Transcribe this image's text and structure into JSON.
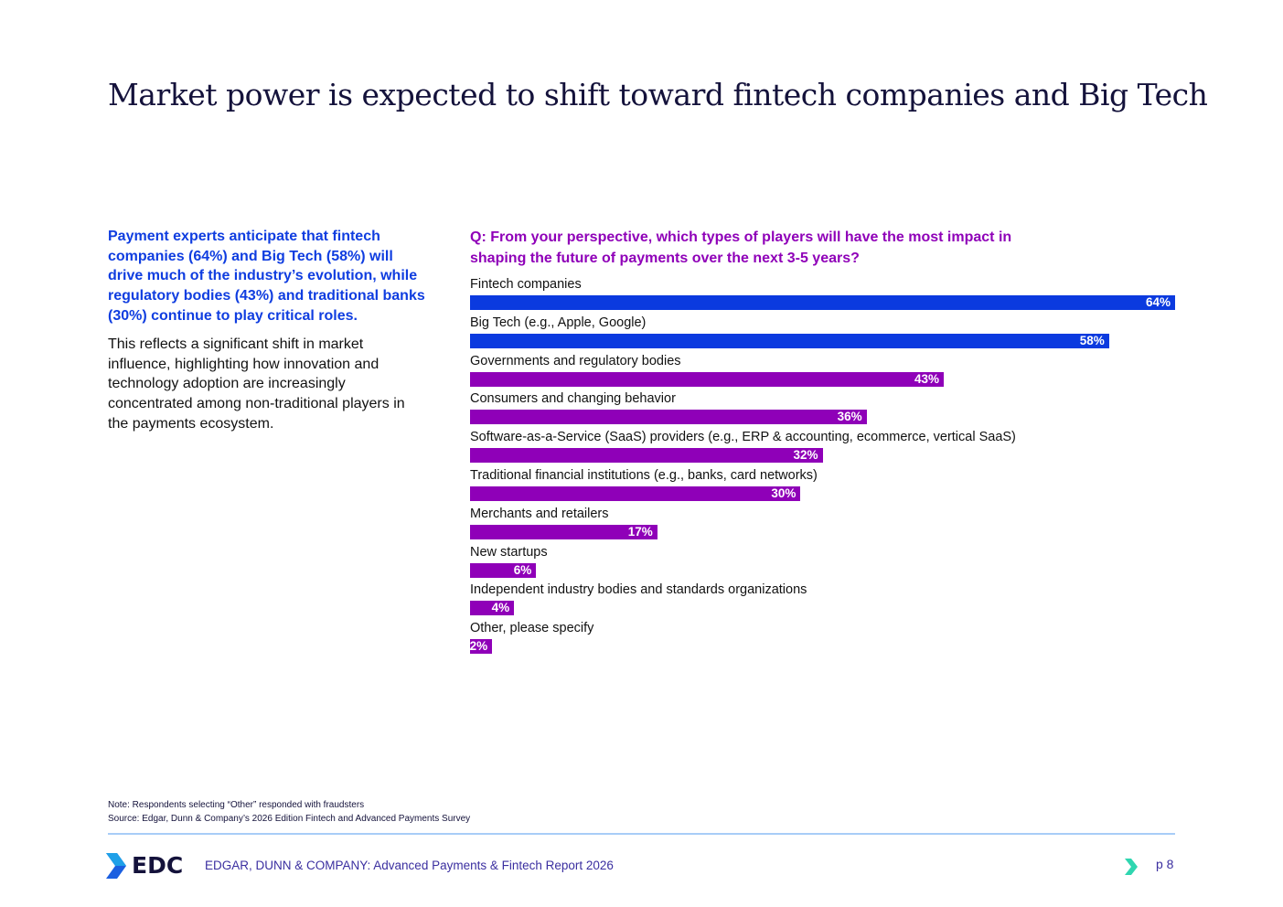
{
  "title": "Market power is expected to shift toward fintech companies and Big Tech",
  "lead": "Payment experts anticipate that fintech companies (64%) and Big Tech (58%) will drive much of the industry’s evolution, while regulatory bodies (43%) and traditional banks (30%) continue to play critical roles.",
  "body": "This reflects a significant shift in market influence, highlighting how innovation and technology adoption are increasingly concentrated among non-traditional players in the payments ecosystem.",
  "chart_data": {
    "type": "bar",
    "orientation": "horizontal",
    "title": "Q: From your perspective, which types of players will have the most impact in shaping the future of payments over the next 3-5 years?",
    "categories": [
      "Fintech companies",
      "Big Tech (e.g., Apple, Google)",
      "Governments and regulatory bodies",
      "Consumers and changing behavior",
      "Software-as-a-Service (SaaS) providers (e.g., ERP & accounting, ecommerce, vertical SaaS)",
      "Traditional financial institutions (e.g., banks, card networks)",
      "Merchants and retailers",
      "New startups",
      "Independent industry bodies and standards organizations",
      "Other, please specify"
    ],
    "values": [
      64,
      58,
      43,
      36,
      32,
      30,
      17,
      6,
      4,
      2
    ],
    "labels": [
      "64%",
      "58%",
      "43%",
      "36%",
      "32%",
      "30%",
      "17%",
      "6%",
      "4%",
      "2%"
    ],
    "colors": [
      "#0b3adf",
      "#0b3adf",
      "#8f00b8",
      "#8f00b8",
      "#8f00b8",
      "#8f00b8",
      "#8f00b8",
      "#8f00b8",
      "#8f00b8",
      "#8f00b8"
    ],
    "xlim": [
      0,
      64
    ]
  },
  "note": "Note: Respondents selecting “Other” responded with fraudsters",
  "source": "Source: Edgar, Dunn & Company’s 2026 Edition Fintech and Advanced Payments Survey",
  "footer": {
    "logo": "EDC",
    "text": "EDGAR, DUNN & COMPANY: Advanced Payments & Fintech Report 2026",
    "page": "p 8"
  }
}
